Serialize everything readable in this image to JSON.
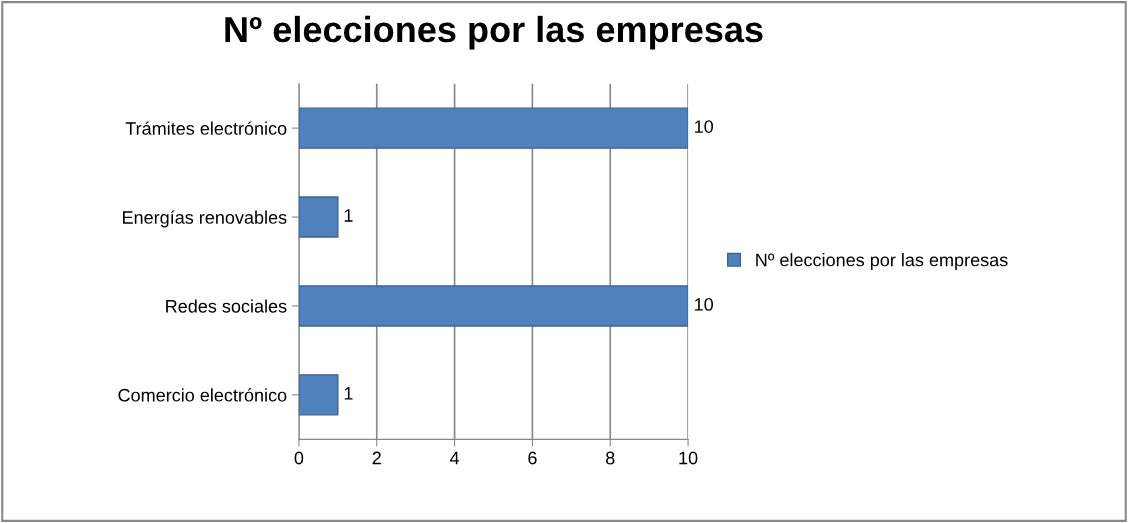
{
  "chart_data": {
    "type": "bar",
    "orientation": "horizontal",
    "title": "Nº elecciones por las empresas",
    "categories": [
      "Trámites electrónico",
      "Energías renovables",
      "Redes sociales",
      "Comercio electrónico"
    ],
    "series": [
      {
        "name": "Nº elecciones por las empresas",
        "color": "#4f81bd",
        "values": [
          10,
          1,
          10,
          1
        ]
      }
    ],
    "xlim": [
      0,
      10
    ],
    "xticks": [
      0,
      2,
      4,
      6,
      8,
      10
    ],
    "grid": "x",
    "legend": "right",
    "data_labels": true
  }
}
